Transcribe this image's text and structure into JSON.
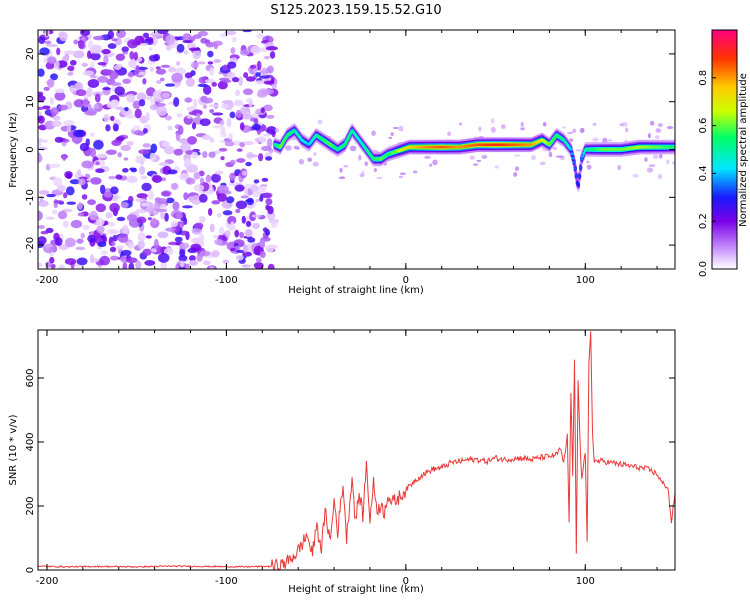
{
  "chart_data": [
    {
      "type": "heatmap",
      "title": "S125.2023.159.15.52.G10",
      "xlabel": "Height of straight line (km)",
      "ylabel": "Frequency (Hz)",
      "xlim": [
        -205,
        150
      ],
      "ylim": [
        -25,
        25
      ],
      "xticks": [
        -200,
        -100,
        0,
        100
      ],
      "yticks": [
        -20,
        -10,
        0,
        10,
        20
      ],
      "colorbar": {
        "label": "Normalized spectral amplitude",
        "range": [
          0,
          1
        ],
        "ticks": [
          "0.0",
          "0.2",
          "0.4",
          "0.6",
          "0.8"
        ],
        "colormap": [
          "#ffffff",
          "#cc99ff",
          "#7a00e6",
          "#1a1aff",
          "#00e6ff",
          "#00ff66",
          "#ccff00",
          "#ffcc00",
          "#ff3300",
          "#ff0080"
        ]
      },
      "noise_region": {
        "x_range": [
          -205,
          -73
        ],
        "description_values": "scattered low-amplitude purple speckle across all frequencies"
      },
      "ridge": {
        "x": [
          -73,
          -70,
          -66,
          -62,
          -58,
          -54,
          -50,
          -46,
          -42,
          -38,
          -34,
          -30,
          -26,
          -22,
          -18,
          -14,
          -10,
          -6,
          -2,
          2,
          10,
          20,
          30,
          40,
          50,
          60,
          70,
          76,
          80,
          84,
          88,
          90,
          92,
          94,
          96,
          98,
          100,
          110,
          120,
          130,
          140,
          150
        ],
        "y": [
          1,
          0.5,
          3,
          4,
          2,
          1,
          3,
          2,
          1,
          0,
          1,
          4,
          2,
          0,
          -2,
          -2,
          -1,
          -0.5,
          0,
          0.5,
          0.5,
          0.5,
          0.5,
          1,
          1,
          1,
          1,
          2,
          1,
          3,
          2,
          1,
          0,
          -3,
          -8,
          -2,
          0,
          0,
          0,
          0.5,
          0.5,
          0.5
        ],
        "amplitude": [
          0.5,
          0.6,
          0.55,
          0.5,
          0.45,
          0.4,
          0.5,
          0.55,
          0.6,
          0.5,
          0.55,
          0.5,
          0.45,
          0.5,
          0.55,
          0.6,
          0.55,
          0.6,
          0.7,
          0.75,
          0.8,
          0.85,
          0.8,
          0.85,
          0.9,
          0.85,
          0.8,
          0.7,
          0.6,
          0.55,
          0.5,
          0.45,
          0.4,
          0.35,
          0.3,
          0.35,
          0.5,
          0.6,
          0.6,
          0.65,
          0.6,
          0.55
        ]
      }
    },
    {
      "type": "line",
      "xlabel": "Height of straight line (km)",
      "ylabel": "SNR (10 * v/v)",
      "xlim": [
        -205,
        150
      ],
      "ylim": [
        0,
        750
      ],
      "xticks": [
        -200,
        -100,
        0,
        100
      ],
      "yticks": [
        0,
        200,
        400,
        600
      ],
      "series": [
        {
          "color": "#e83a3a",
          "x": [
            -205,
            -190,
            -170,
            -150,
            -130,
            -110,
            -90,
            -80,
            -75,
            -70,
            -65,
            -60,
            -55,
            -52,
            -50,
            -47,
            -45,
            -42,
            -40,
            -38,
            -35,
            -33,
            -30,
            -28,
            -26,
            -24,
            -22,
            -20,
            -18,
            -16,
            -14,
            -12,
            -10,
            -8,
            -5,
            0,
            5,
            10,
            15,
            20,
            25,
            30,
            35,
            40,
            45,
            50,
            55,
            60,
            65,
            70,
            75,
            80,
            84,
            86,
            88,
            90,
            91,
            92,
            93,
            94,
            95,
            96,
            97,
            98,
            99,
            100,
            101,
            102,
            103,
            104,
            105,
            110,
            115,
            120,
            125,
            130,
            135,
            140,
            143,
            146,
            148,
            150
          ],
          "y": [
            12,
            10,
            11,
            10,
            12,
            11,
            10,
            11,
            11,
            12,
            30,
            60,
            110,
            45,
            140,
            70,
            180,
            90,
            220,
            120,
            270,
            100,
            290,
            150,
            240,
            170,
            330,
            160,
            270,
            190,
            200,
            180,
            240,
            210,
            220,
            250,
            280,
            300,
            315,
            320,
            335,
            340,
            345,
            345,
            340,
            350,
            345,
            348,
            350,
            345,
            352,
            355,
            360,
            380,
            330,
            420,
            150,
            560,
            300,
            650,
            50,
            600,
            420,
            280,
            330,
            360,
            85,
            640,
            750,
            430,
            340,
            340,
            335,
            330,
            325,
            320,
            315,
            300,
            270,
            260,
            150,
            240
          ]
        }
      ]
    }
  ]
}
